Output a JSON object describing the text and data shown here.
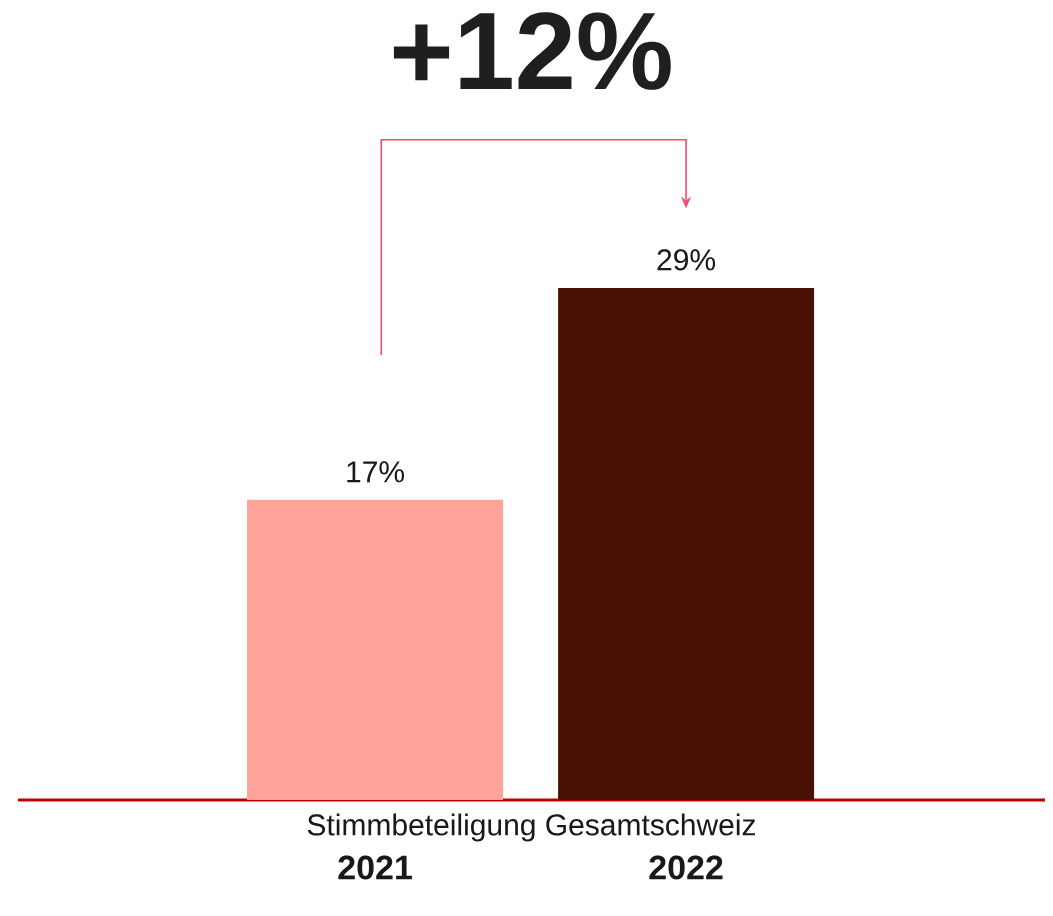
{
  "chart_data": {
    "type": "bar",
    "title": "+12%",
    "xlabel": "Stimmbeteiligung Gesamtschweiz",
    "categories": [
      "2021",
      "2022"
    ],
    "values": [
      17,
      29
    ],
    "colors": [
      "#ffa398",
      "#4a1205"
    ],
    "value_labels": [
      "17%",
      "29%"
    ]
  }
}
